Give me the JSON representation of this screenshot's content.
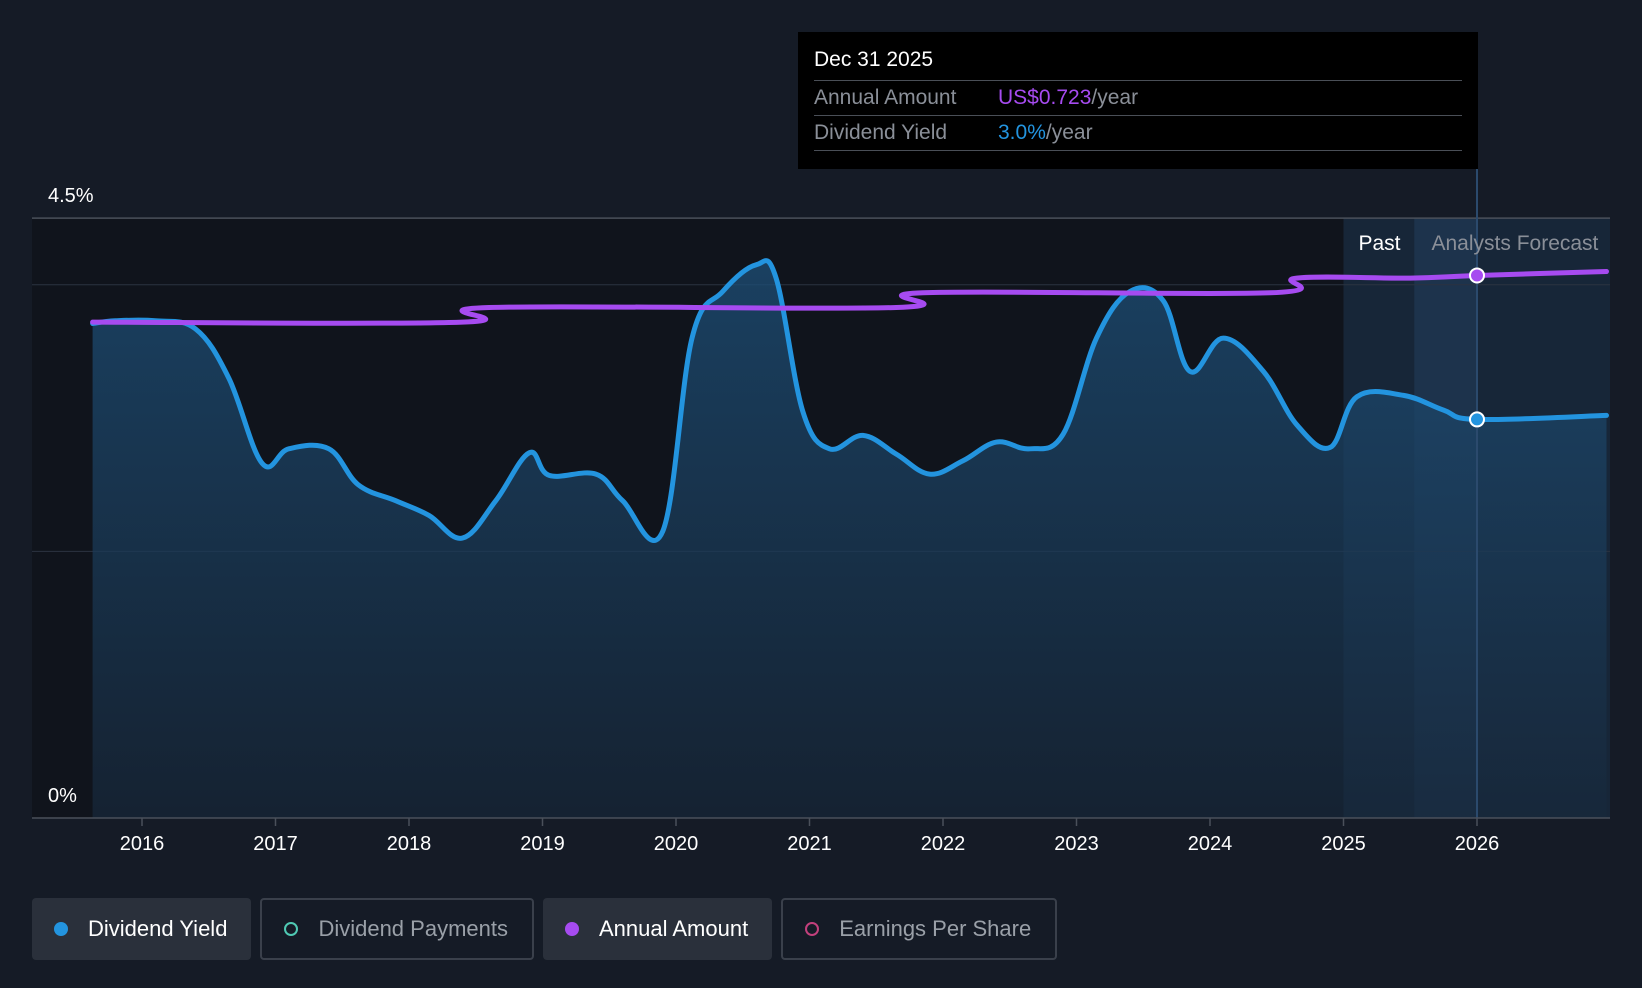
{
  "tooltip": {
    "date": "Dec 31 2025",
    "annual_label": "Annual Amount",
    "annual_value": "US$0.723",
    "annual_unit": "/year",
    "yield_label": "Dividend Yield",
    "yield_value": "3.0%",
    "yield_unit": "/year"
  },
  "legend": {
    "dividend_yield": "Dividend Yield",
    "dividend_payments": "Dividend Payments",
    "annual_amount": "Annual Amount",
    "earnings_per_share": "Earnings Per Share"
  },
  "colors": {
    "background": "#151b26",
    "dividend_yield": "#2394df",
    "annual_amount": "#a64bf0",
    "dividend_payments": "#4fc9b3",
    "earnings_per_share": "#c2407c"
  },
  "chart_data": {
    "type": "line",
    "y_tick_labels": [
      "0%",
      "4.5%"
    ],
    "ylim": [
      0,
      4.5
    ],
    "xlim": [
      2015.0,
      2026.97
    ],
    "x_tick_labels": [
      "2016",
      "2017",
      "2018",
      "2019",
      "2020",
      "2021",
      "2022",
      "2023",
      "2024",
      "2025",
      "2026"
    ],
    "x_ticks": [
      2016,
      2017,
      2018,
      2019,
      2020,
      2021,
      2022,
      2023,
      2024,
      2025,
      2026
    ],
    "region_labels": {
      "past": "Past",
      "forecast": "Analysts Forecast"
    },
    "past_end": 2025.0,
    "forecast_start": 2026.0,
    "cursor_x": 2026.0,
    "grid": true,
    "legend_position": "bottom",
    "series": [
      {
        "name": "Dividend Yield",
        "points": [
          [
            2015.63,
            3.71
          ],
          [
            2015.8,
            3.73
          ],
          [
            2016.1,
            3.73
          ],
          [
            2016.4,
            3.67
          ],
          [
            2016.65,
            3.3
          ],
          [
            2016.9,
            2.66
          ],
          [
            2017.1,
            2.77
          ],
          [
            2017.4,
            2.77
          ],
          [
            2017.62,
            2.5
          ],
          [
            2017.9,
            2.38
          ],
          [
            2018.15,
            2.27
          ],
          [
            2018.4,
            2.1
          ],
          [
            2018.65,
            2.38
          ],
          [
            2018.9,
            2.74
          ],
          [
            2019.05,
            2.57
          ],
          [
            2019.4,
            2.58
          ],
          [
            2019.6,
            2.38
          ],
          [
            2019.9,
            2.15
          ],
          [
            2020.12,
            3.6
          ],
          [
            2020.35,
            3.95
          ],
          [
            2020.6,
            4.15
          ],
          [
            2020.75,
            4.05
          ],
          [
            2020.95,
            3.05
          ],
          [
            2021.15,
            2.77
          ],
          [
            2021.4,
            2.87
          ],
          [
            2021.65,
            2.73
          ],
          [
            2021.9,
            2.58
          ],
          [
            2022.15,
            2.68
          ],
          [
            2022.4,
            2.82
          ],
          [
            2022.65,
            2.77
          ],
          [
            2022.9,
            2.88
          ],
          [
            2023.15,
            3.6
          ],
          [
            2023.4,
            3.95
          ],
          [
            2023.65,
            3.88
          ],
          [
            2023.85,
            3.35
          ],
          [
            2024.1,
            3.6
          ],
          [
            2024.4,
            3.35
          ],
          [
            2024.65,
            2.95
          ],
          [
            2024.9,
            2.78
          ],
          [
            2025.1,
            3.16
          ],
          [
            2025.45,
            3.17
          ],
          [
            2025.75,
            3.06
          ],
          [
            2026.0,
            2.99
          ],
          [
            2026.97,
            3.02
          ]
        ]
      },
      {
        "name": "Annual Amount",
        "points": [
          [
            2015.63,
            3.72
          ],
          [
            2018.4,
            3.72
          ],
          [
            2018.6,
            3.83
          ],
          [
            2021.65,
            3.83
          ],
          [
            2021.85,
            3.94
          ],
          [
            2024.45,
            3.94
          ],
          [
            2024.65,
            4.05
          ],
          [
            2025.5,
            4.05
          ],
          [
            2026.0,
            4.07
          ],
          [
            2026.97,
            4.1
          ]
        ]
      }
    ]
  }
}
